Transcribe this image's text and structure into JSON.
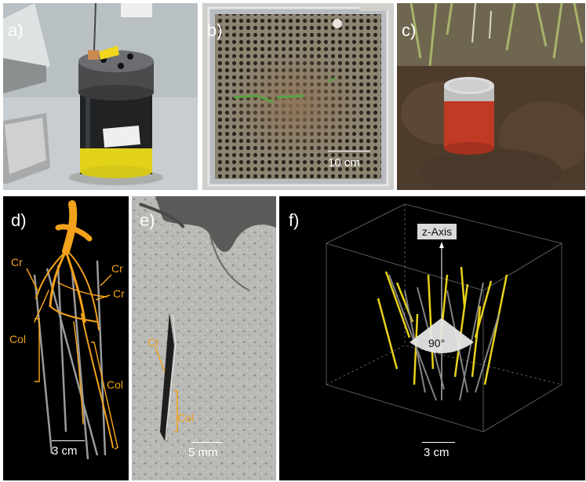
{
  "panels": {
    "a": {
      "label": "a)"
    },
    "b": {
      "label": "b)",
      "scale": "10 cm"
    },
    "c": {
      "label": "c)"
    },
    "d": {
      "label": "d)",
      "scale": "3 cm",
      "cr1": "Cr",
      "cr2": "Cr",
      "cr3": "Cr",
      "col1": "Col",
      "col2": "Col"
    },
    "e": {
      "label": "e)",
      "scale": "5 mm",
      "cr": "Cr",
      "col": "Col"
    },
    "f": {
      "label": "f)",
      "scale": "3 cm",
      "axis": "z-Axis",
      "angle": "90°"
    }
  },
  "colors": {
    "root_orange": "#f2a21b",
    "tube_yellow": "#e8d21a",
    "background_black": "#000000",
    "soil_gray": "#b9b9b6"
  }
}
